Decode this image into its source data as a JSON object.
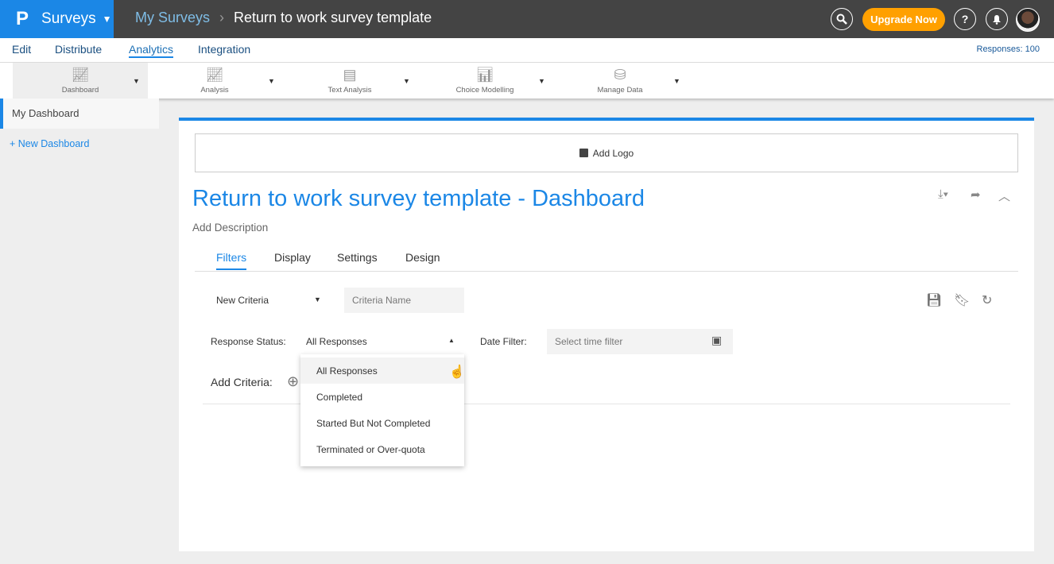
{
  "header": {
    "logo": "P",
    "app": "Surveys",
    "breadcrumb": [
      "My Surveys",
      "Return to work survey template"
    ],
    "upgrade": "Upgrade Now",
    "help": "?"
  },
  "nav": {
    "items": [
      "Edit",
      "Distribute",
      "Analytics",
      "Integration"
    ],
    "active": "Analytics",
    "responses": "Responses: 100"
  },
  "toolbar": {
    "items": [
      "Dashboard",
      "Analysis",
      "Text Analysis",
      "Choice Modelling",
      "Manage Data"
    ],
    "selected": "Dashboard"
  },
  "sidebar": {
    "my_dashboard": "My Dashboard",
    "new_dashboard": "+ New Dashboard"
  },
  "dashboard": {
    "add_logo": "Add Logo",
    "title": "Return to work survey template - Dashboard",
    "description": "Add Description",
    "tabs": [
      "Filters",
      "Display",
      "Settings",
      "Design"
    ],
    "active_tab": "Filters"
  },
  "filters": {
    "criteria": "New Criteria",
    "criteria_name_placeholder": "Criteria Name",
    "response_status_label": "Response Status:",
    "response_status_value": "All Responses",
    "date_filter_label": "Date Filter:",
    "date_placeholder": "Select time filter",
    "add_criteria": "Add Criteria:",
    "options": [
      "All Responses",
      "Completed",
      "Started But Not Completed",
      "Terminated or Over-quota"
    ],
    "hovered_option": "All Responses"
  },
  "colors": {
    "brand": "#1b87e6",
    "topbar": "#444444",
    "upgrade": "#ffa000"
  }
}
